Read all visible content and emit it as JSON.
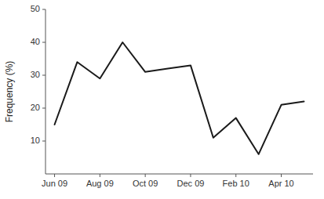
{
  "chart_data": {
    "type": "line",
    "categories": [
      "Jun 09",
      null,
      "Aug 09",
      null,
      "Oct 09",
      null,
      "Dec 09",
      null,
      "Feb 10",
      null,
      "Apr 10",
      null
    ],
    "values": [
      15,
      34,
      29,
      40,
      31,
      32,
      33,
      11,
      17,
      6,
      21,
      22
    ],
    "color": "#1a1a1a",
    "ylim": [
      0,
      50
    ],
    "yticks": [
      10,
      20,
      30,
      40,
      50
    ],
    "ylabel": "Frequency (%)"
  }
}
